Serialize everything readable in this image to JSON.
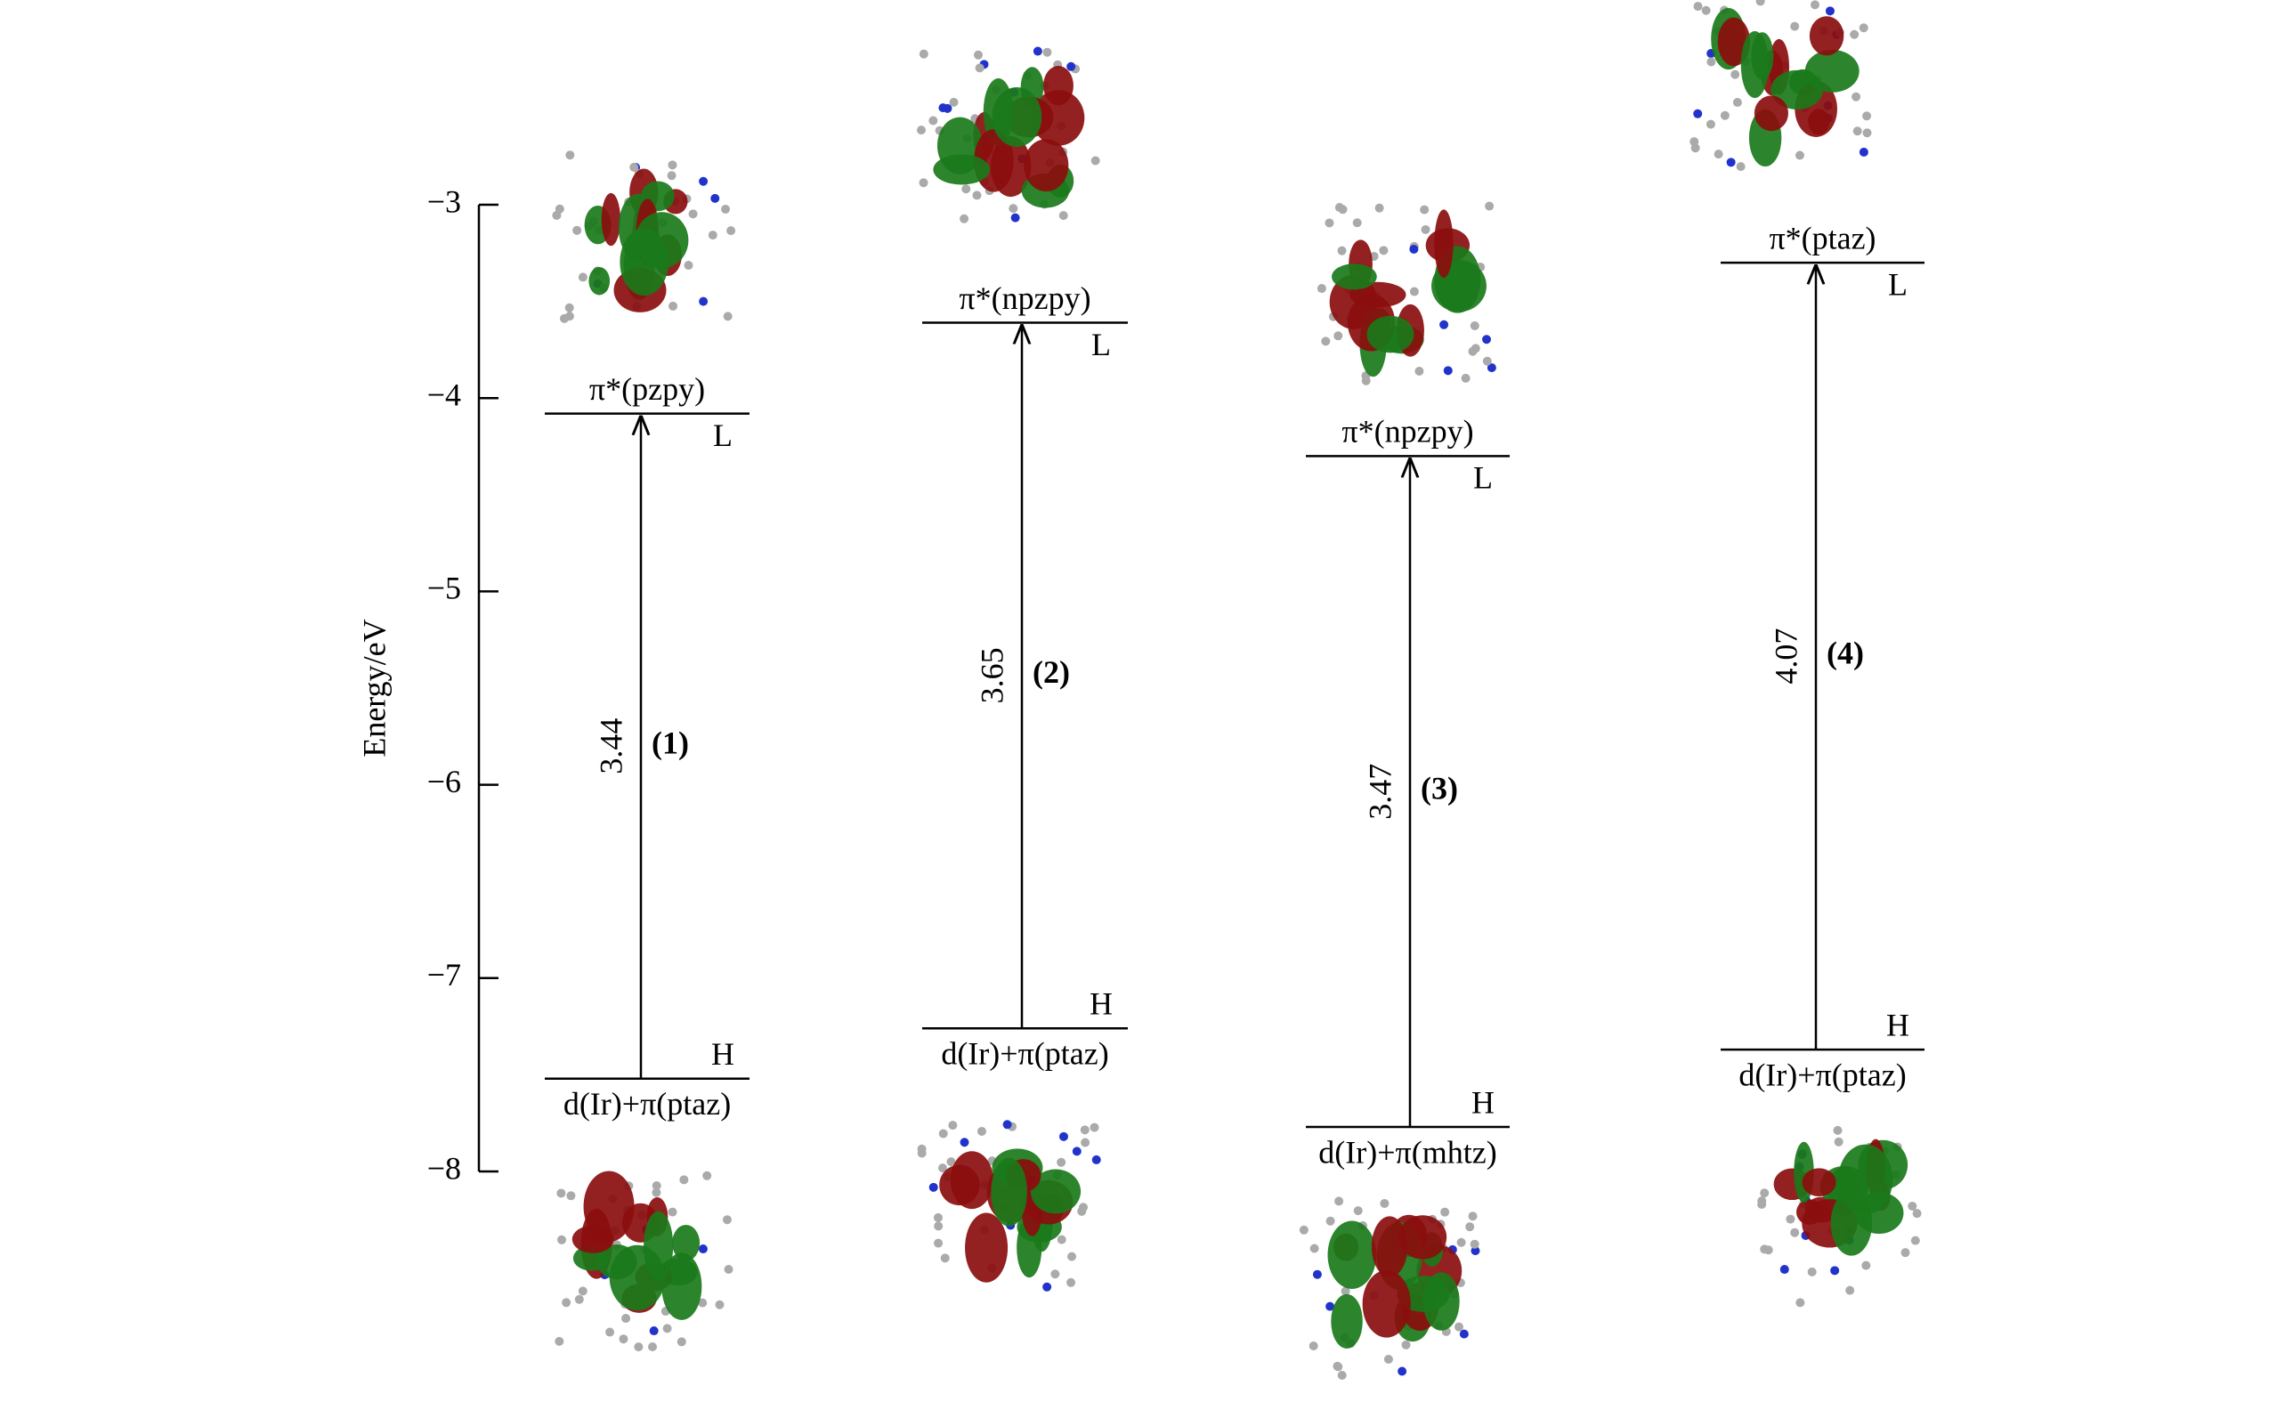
{
  "chart_data": {
    "type": "energy-level",
    "ylabel": "Energy/eV",
    "ylim": [
      -8,
      -3
    ],
    "yticks": [
      {
        "value": -3,
        "label": "−3"
      },
      {
        "value": -4,
        "label": "−4"
      },
      {
        "value": -5,
        "label": "−5"
      },
      {
        "value": -6,
        "label": "−6"
      },
      {
        "value": -7,
        "label": "−7"
      },
      {
        "value": -8,
        "label": "−8"
      }
    ],
    "series": [
      {
        "name": "(1)",
        "lumo": -4.08,
        "homo": -7.52,
        "gap": 3.44,
        "lumo_tag": "L",
        "homo_tag": "H",
        "lumo_label": "π*(pzpy)",
        "homo_label": "d(Ir)+π(ptaz)"
      },
      {
        "name": "(2)",
        "lumo": -3.61,
        "homo": -7.26,
        "gap": 3.65,
        "lumo_tag": "L",
        "homo_tag": "H",
        "lumo_label": "π*(npzpy)",
        "homo_label": "d(Ir)+π(ptaz)"
      },
      {
        "name": "(3)",
        "lumo": -4.3,
        "homo": -7.77,
        "gap": 3.47,
        "lumo_tag": "L",
        "homo_tag": "H",
        "lumo_label": "π*(npzpy)",
        "homo_label": "d(Ir)+π(mhtz)"
      },
      {
        "name": "(4)",
        "lumo": -3.3,
        "homo": -7.37,
        "gap": 4.07,
        "lumo_tag": "L",
        "homo_tag": "H",
        "lumo_label": "π*(ptaz)",
        "homo_label": "d(Ir)+π(ptaz)"
      }
    ]
  }
}
